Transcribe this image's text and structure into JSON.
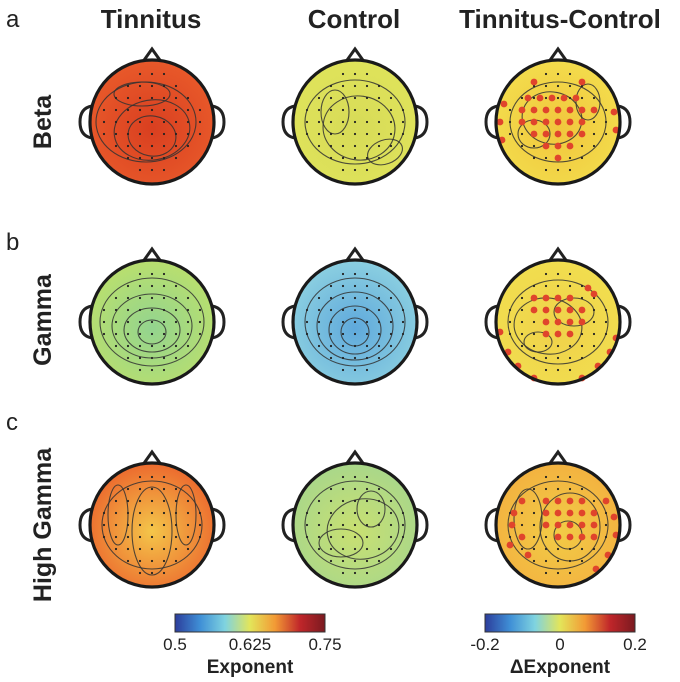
{
  "panel_letters": [
    "a",
    "b",
    "c"
  ],
  "column_headers": [
    "Tinnitus",
    "Control",
    "Tinnitus-Control"
  ],
  "row_labels": [
    "Beta",
    "Gamma",
    "High Gamma"
  ],
  "maps": [
    [
      {
        "fill": "#e8592a",
        "center": "#d93f20"
      },
      {
        "fill": "#dfe35a",
        "center": "#d7db58"
      },
      {
        "fill": "#f3dc4c",
        "center": "#f1c63d"
      }
    ],
    [
      {
        "fill": "#b9df6e",
        "center": "#93d48f"
      },
      {
        "fill": "#8bcfe0",
        "center": "#5fa9dc"
      },
      {
        "fill": "#f1de4f",
        "center": "#f0d14a"
      }
    ],
    [
      {
        "fill": "#ec6a2e",
        "center": "#f4c64a"
      },
      {
        "fill": "#a9d78a",
        "center": "#c9e071"
      },
      {
        "fill": "#f3b240",
        "center": "#f2cc46"
      }
    ]
  ],
  "significance_color": "#e0442c",
  "colorbars": [
    {
      "ticks": [
        "0.5",
        "0.625",
        "0.75"
      ],
      "label": "Exponent",
      "stops": [
        "#2c3d9b",
        "#3f8fd6",
        "#7fd3e0",
        "#e3e55a",
        "#f29a35",
        "#c0262a",
        "#7a1a20"
      ]
    },
    {
      "ticks": [
        "-0.2",
        "0",
        "0.2"
      ],
      "label": "ΔExponent",
      "stops": [
        "#2c3d9b",
        "#3f8fd6",
        "#7fd3e0",
        "#e3e55a",
        "#f29a35",
        "#c0262a",
        "#7a1a20"
      ]
    }
  ]
}
